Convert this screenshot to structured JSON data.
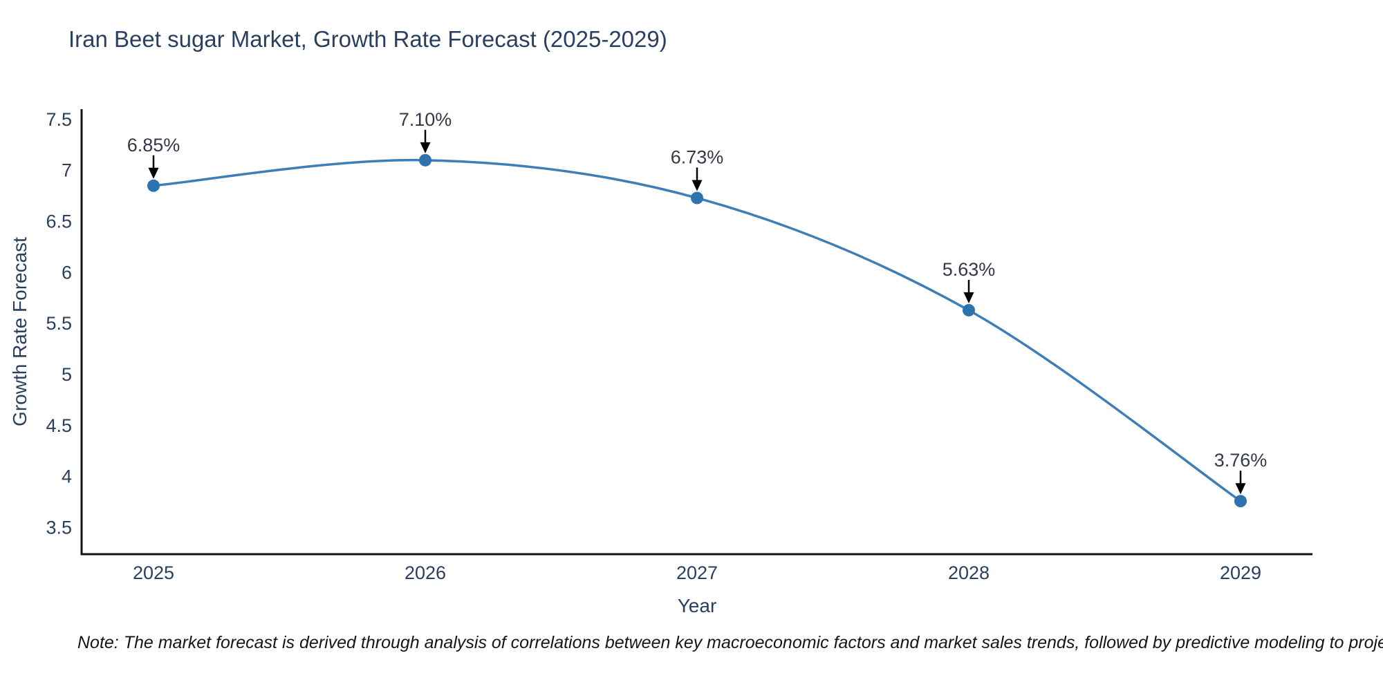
{
  "chart": {
    "title": "Iran Beet sugar Market, Growth Rate Forecast (2025-2029)",
    "note": "Note: The market forecast is derived through analysis of correlations between key macroeconomic factors and market sales trends, followed by predictive modeling to project future sales"
  },
  "chart_data": {
    "type": "line",
    "title": "Iran Beet sugar Market, Growth Rate Forecast (2025-2029)",
    "categories": [
      "2025",
      "2026",
      "2027",
      "2028",
      "2029"
    ],
    "values": [
      6.85,
      7.1,
      6.73,
      5.63,
      3.76
    ],
    "point_labels": [
      "6.85%",
      "7.10%",
      "6.73%",
      "5.63%",
      "3.76%"
    ],
    "xlabel": "Year",
    "ylabel": "Growth Rate Forecast",
    "yticks": [
      "7.5",
      "7",
      "6.5",
      "6",
      "5.5",
      "5",
      "4.5",
      "4",
      "3.5"
    ],
    "ylim": [
      3.24,
      7.6
    ],
    "line_shape": "spline",
    "grid": false,
    "legend": false,
    "colors": {
      "line": "#3d7eb8",
      "marker": "#2e73ad",
      "arrow": "#000000",
      "text": "#2a3f5f",
      "axis": "#111111",
      "note_text": "#161616",
      "background": "#ffffff"
    }
  }
}
